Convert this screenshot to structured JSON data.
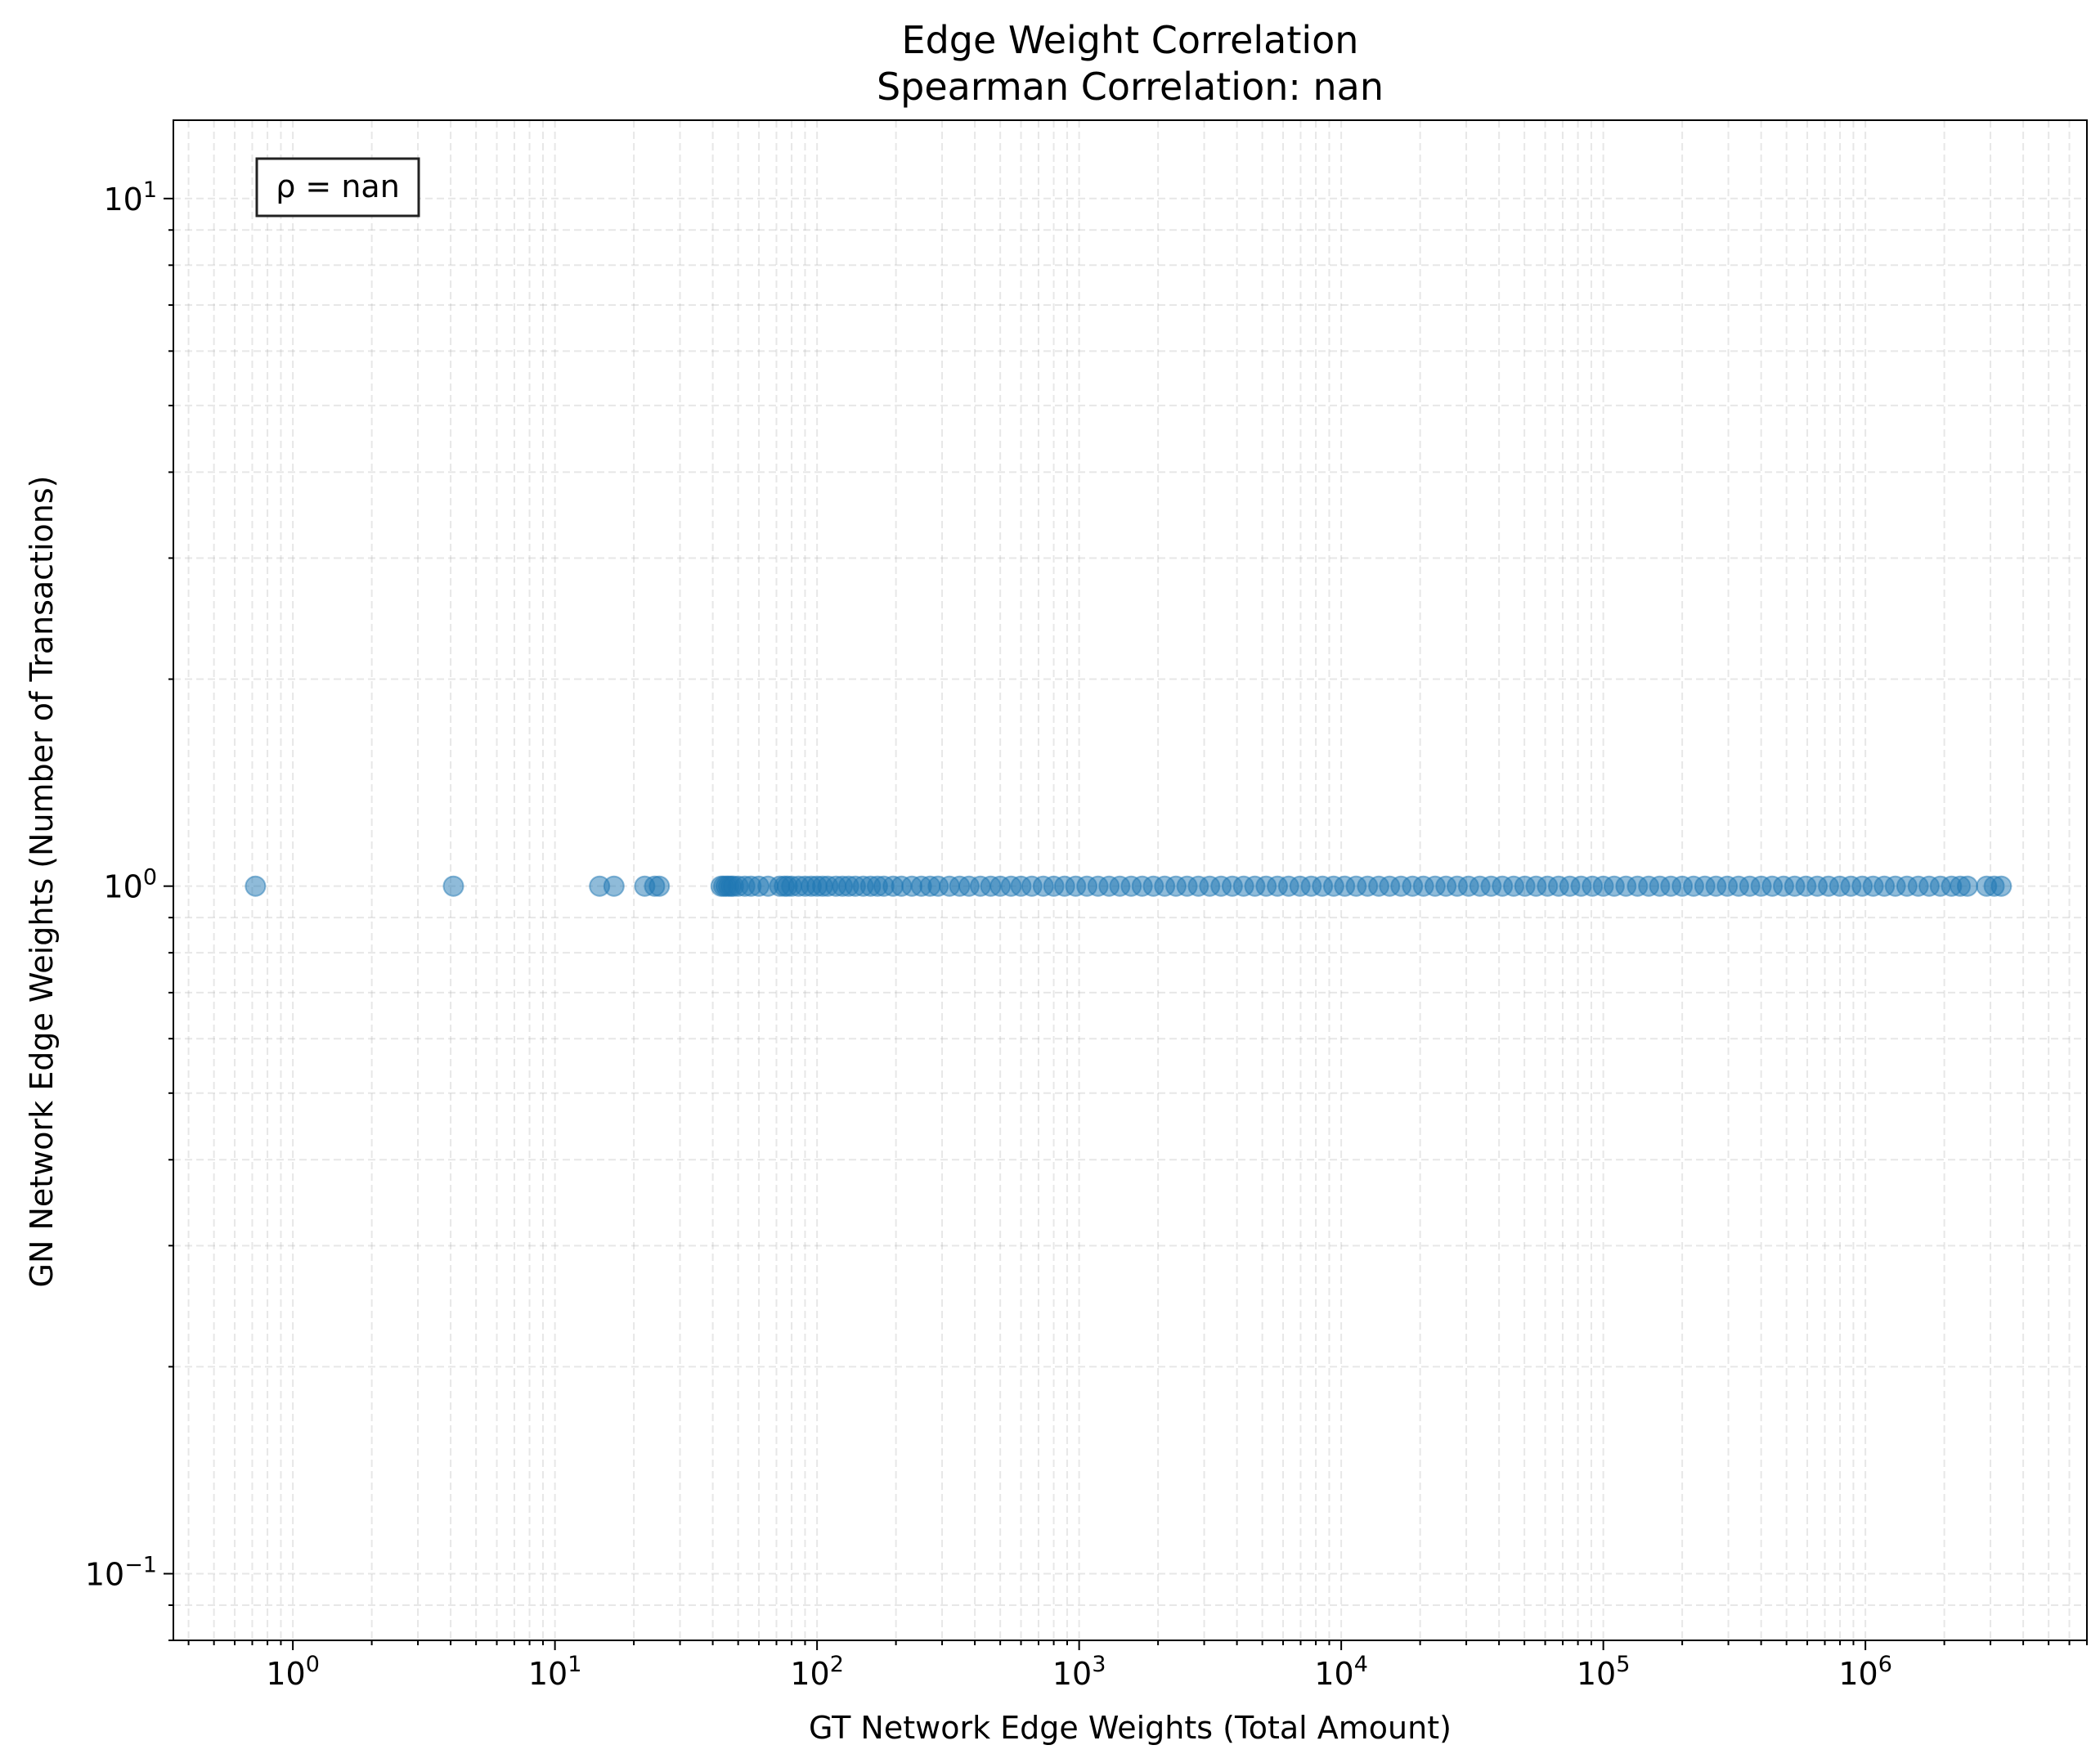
{
  "chart_data": {
    "type": "scatter",
    "title": "Edge Weight Correlation",
    "subtitle": "Spearman Correlation: nan",
    "xlabel": "GT Network Edge Weights (Total Amount)",
    "ylabel": "GN Network Edge Weights (Number of Transactions)",
    "xscale": "log",
    "yscale": "log",
    "xlim": [
      0.35,
      7000000
    ],
    "ylim": [
      0.08,
      13
    ],
    "xticks": [
      {
        "base": "10",
        "exp": "0"
      },
      {
        "base": "10",
        "exp": "1"
      },
      {
        "base": "10",
        "exp": "2"
      },
      {
        "base": "10",
        "exp": "3"
      },
      {
        "base": "10",
        "exp": "4"
      },
      {
        "base": "10",
        "exp": "5"
      },
      {
        "base": "10",
        "exp": "6"
      }
    ],
    "yticks": [
      {
        "base": "10",
        "exp": "−1"
      },
      {
        "base": "10",
        "exp": "0"
      },
      {
        "base": "10",
        "exp": "1"
      }
    ],
    "grid": true,
    "annotation": "ρ = nan",
    "annotation_position": "top-left",
    "marker_color": "#1f77b4",
    "marker_alpha": 0.5,
    "y_value": 1,
    "x": [
      0.72,
      4.1,
      14.8,
      16.8,
      22,
      24,
      25,
      43,
      44,
      45,
      46,
      47,
      48,
      50,
      53,
      56,
      60,
      65,
      72,
      75,
      77,
      80,
      85,
      90,
      95,
      100,
      105,
      110,
      118,
      125,
      132,
      140,
      150,
      160,
      170,
      180,
      195,
      210,
      230,
      250,
      270,
      290,
      320,
      350,
      380,
      420,
      460,
      500,
      550,
      600,
      660,
      730,
      800,
      880,
      970,
      1070,
      1180,
      1300,
      1430,
      1580,
      1740,
      1920,
      2120,
      2340,
      2580,
      2850,
      3150,
      3480,
      3840,
      4240,
      4680,
      5170,
      5710,
      6300,
      6960,
      7680,
      8480,
      9360,
      10300,
      11400,
      12600,
      13900,
      15300,
      16900,
      18700,
      20600,
      22800,
      25100,
      27700,
      30600,
      33800,
      37300,
      41200,
      45500,
      50200,
      55400,
      61200,
      67500,
      74500,
      82300,
      90800,
      100000,
      110000,
      122000,
      135000,
      149000,
      164000,
      181000,
      200000,
      221000,
      244000,
      269000,
      297000,
      328000,
      362000,
      400000,
      441000,
      487000,
      537000,
      593000,
      655000,
      723000,
      798000,
      880000,
      972000,
      1070000,
      1180000,
      1300000,
      1440000,
      1590000,
      1750000,
      1930000,
      2130000,
      2300000,
      2450000,
      2900000,
      3100000,
      3300000
    ]
  }
}
